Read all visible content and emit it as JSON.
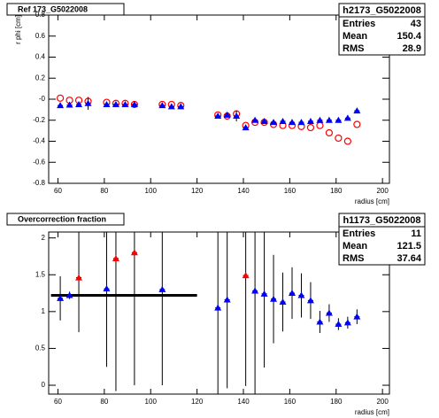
{
  "chart_data": [
    {
      "type": "scatter",
      "title": "Ref 173_G5022008",
      "x_label": "radius [cm]",
      "y_label": "r phi [cm]",
      "xlim": [
        56,
        203
      ],
      "xticks": [
        60,
        80,
        100,
        120,
        140,
        160,
        180,
        200
      ],
      "ylim": [
        -0.8,
        0.8
      ],
      "yticks": [
        -0.8,
        -0.6,
        -0.4,
        -0.2,
        {
          "value": 0,
          "label": "-0"
        },
        0.2,
        0.4,
        0.6,
        0.8
      ],
      "stats": {
        "name": "h2173_G5022008",
        "rows": [
          {
            "label": "Entries",
            "value": 43
          },
          {
            "label": "Mean",
            "value": 150.4
          },
          {
            "label": "RMS",
            "value": 28.9
          }
        ]
      },
      "series": [
        {
          "color": "#ff0000",
          "marker": "circle-open",
          "x": [
            61,
            65,
            69,
            73,
            81,
            85,
            89,
            93,
            105,
            109,
            113,
            129,
            133,
            137,
            141,
            145,
            149,
            153,
            157,
            161,
            165,
            169,
            173,
            177,
            181,
            185,
            189
          ],
          "values": [
            0.01,
            -0.01,
            -0.01,
            -0.02,
            -0.03,
            -0.04,
            -0.04,
            -0.05,
            -0.05,
            -0.05,
            -0.06,
            -0.15,
            -0.16,
            -0.14,
            -0.25,
            -0.22,
            -0.22,
            -0.24,
            -0.25,
            -0.25,
            -0.26,
            -0.27,
            -0.25,
            -0.32,
            -0.37,
            -0.4,
            -0.24
          ]
        },
        {
          "color": "#0000ff",
          "marker": "triangle",
          "x": [
            61,
            65,
            69,
            73,
            81,
            85,
            89,
            93,
            105,
            109,
            113,
            129,
            133,
            137,
            141,
            145,
            149,
            153,
            157,
            161,
            165,
            169,
            173,
            177,
            181,
            185,
            189
          ],
          "values": [
            -0.06,
            -0.055,
            -0.05,
            -0.04,
            -0.05,
            -0.05,
            -0.05,
            -0.05,
            -0.06,
            -0.07,
            -0.07,
            -0.16,
            -0.15,
            -0.16,
            -0.27,
            -0.2,
            -0.21,
            -0.22,
            -0.21,
            -0.22,
            -0.22,
            -0.21,
            -0.2,
            -0.2,
            -0.2,
            -0.18,
            -0.11
          ],
          "errors": [
            0.02,
            0.02,
            0.02,
            0.06,
            0.02,
            0.02,
            0.02,
            0.02,
            0.02,
            0.02,
            0.02,
            0.02,
            0.02,
            0.05,
            0.02,
            0.02,
            0.02,
            0.02,
            0.02,
            0.02,
            0.02,
            0.02,
            0.02,
            0.02,
            0.02,
            0.02,
            0.02
          ]
        }
      ]
    },
    {
      "type": "scatter",
      "title": "Overcorrection fraction",
      "x_label": "radius [cm]",
      "xlim": [
        56,
        203
      ],
      "xticks": [
        60,
        80,
        100,
        120,
        140,
        160,
        180,
        200
      ],
      "ylim": [
        -0.12,
        2.08
      ],
      "yticks": [
        0,
        0.5,
        1,
        1.5,
        2
      ],
      "stats": {
        "name": "h1173_G5022008",
        "rows": [
          {
            "label": "Entries",
            "value": 11
          },
          {
            "label": "Mean",
            "value": 121.5
          },
          {
            "label": "RMS",
            "value": 37.64
          }
        ]
      },
      "reference_line": {
        "x": [
          57,
          120
        ],
        "y": 1.22,
        "color": "#000000"
      },
      "series": [
        {
          "color": "#0000ff",
          "marker": "triangle",
          "x": [
            61,
            65,
            81,
            105,
            129,
            133,
            145,
            149,
            153,
            157,
            161,
            165,
            169,
            173,
            177,
            181,
            185,
            189
          ],
          "values": [
            1.18,
            1.22,
            1.31,
            1.3,
            1.05,
            1.16,
            1.28,
            1.24,
            1.17,
            1.13,
            1.25,
            1.22,
            1.15,
            0.86,
            0.98,
            0.83,
            0.85,
            0.93
          ],
          "errors": [
            0.3,
            0.05,
            1.06,
            1.3,
            1.5,
            1.2,
            1.4,
            1.0,
            0.6,
            0.4,
            0.35,
            0.3,
            0.25,
            0.15,
            0.12,
            0.08,
            0.08,
            0.1
          ]
        },
        {
          "color": "#ff0000",
          "marker": "triangle",
          "x": [
            69,
            85,
            93,
            141
          ],
          "values": [
            1.46,
            1.72,
            1.8,
            1.49
          ],
          "errors": [
            0.74,
            1.8,
            1.8,
            1.5
          ]
        }
      ]
    }
  ]
}
